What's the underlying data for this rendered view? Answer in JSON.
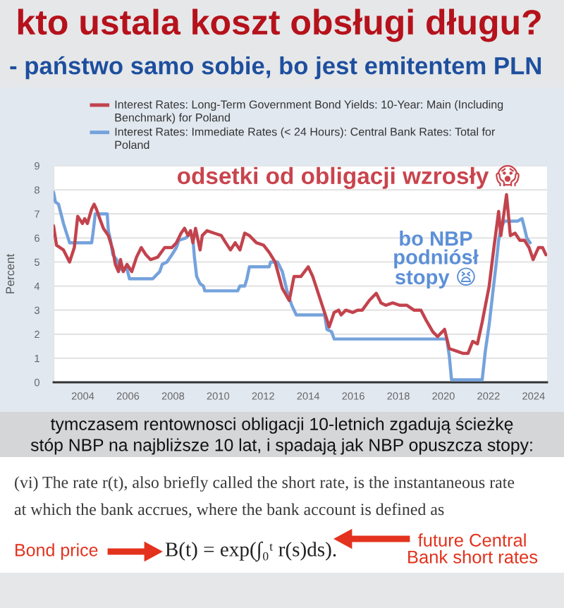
{
  "chart_data": {
    "type": "line",
    "title": "kto ustala koszt obsługi długu?",
    "subtitle": "- państwo samo sobie, bo jest emitentem PLN",
    "ylabel": "Percent",
    "xlim": [
      2002.7,
      2024.6
    ],
    "xticks": [
      2004,
      2006,
      2008,
      2010,
      2012,
      2014,
      2016,
      2018,
      2020,
      2022,
      2024
    ],
    "ylim": [
      0,
      9
    ],
    "yticks": [
      0,
      1,
      2,
      3,
      4,
      5,
      6,
      7,
      8,
      9
    ],
    "grid": "y",
    "legend": "top",
    "line_style": "solid",
    "series": [
      {
        "name": "Interest Rates: Long-Term Government Bond Yields: 10-Year: Main (Including\nBenchmark) for Poland",
        "color": "#c2434d",
        "x": [
          2002.7,
          2002.83,
          2003.14,
          2003.41,
          2003.62,
          2003.77,
          2003.98,
          2004.08,
          2004.2,
          2004.39,
          2004.5,
          2004.6,
          2004.71,
          2004.91,
          2005.13,
          2005.33,
          2005.44,
          2005.58,
          2005.67,
          2005.79,
          2005.96,
          2006.17,
          2006.38,
          2006.59,
          2006.8,
          2007.0,
          2007.32,
          2007.63,
          2007.95,
          2008.15,
          2008.36,
          2008.51,
          2008.67,
          2008.78,
          2008.88,
          2009.0,
          2009.2,
          2009.3,
          2009.51,
          2009.82,
          2010.14,
          2010.34,
          2010.55,
          2010.76,
          2010.97,
          2011.18,
          2011.39,
          2011.7,
          2012.02,
          2012.27,
          2012.53,
          2012.85,
          2013.16,
          2013.37,
          2013.68,
          2014.0,
          2014.2,
          2014.41,
          2014.62,
          2014.83,
          2014.93,
          2015.15,
          2015.35,
          2015.46,
          2015.67,
          2015.98,
          2016.19,
          2016.4,
          2016.71,
          2017.02,
          2017.23,
          2017.44,
          2017.75,
          2018.07,
          2018.38,
          2018.69,
          2019.0,
          2019.22,
          2019.53,
          2019.74,
          2020.05,
          2020.26,
          2020.57,
          2020.88,
          2021.09,
          2021.3,
          2021.51,
          2021.72,
          2022.03,
          2022.24,
          2022.45,
          2022.55,
          2022.8,
          2022.97,
          2023.18,
          2023.39,
          2023.6,
          2023.8,
          2023.98,
          2024.22,
          2024.4,
          2024.55
        ],
        "values": [
          6.5,
          5.7,
          5.5,
          5.0,
          5.6,
          6.9,
          6.6,
          6.8,
          6.6,
          7.2,
          7.4,
          7.2,
          6.9,
          6.4,
          6.1,
          5.5,
          4.9,
          4.6,
          5.1,
          4.6,
          4.9,
          4.6,
          5.2,
          5.6,
          5.3,
          5.1,
          5.2,
          5.6,
          5.6,
          5.8,
          6.2,
          6.4,
          6.1,
          6.3,
          5.8,
          6.4,
          5.5,
          6.1,
          6.3,
          6.2,
          6.1,
          5.8,
          5.5,
          5.8,
          5.5,
          6.2,
          6.1,
          5.8,
          5.7,
          5.4,
          5.0,
          3.9,
          3.4,
          4.4,
          4.4,
          4.8,
          4.4,
          3.8,
          3.2,
          2.6,
          2.3,
          2.9,
          3.0,
          2.8,
          3.0,
          2.9,
          3.0,
          3.0,
          3.4,
          3.7,
          3.3,
          3.2,
          3.3,
          3.2,
          3.2,
          3.0,
          3.0,
          2.6,
          2.1,
          1.9,
          2.2,
          1.4,
          1.3,
          1.2,
          1.2,
          1.7,
          1.6,
          2.5,
          4.0,
          5.6,
          7.1,
          6.1,
          7.8,
          6.1,
          6.2,
          5.9,
          5.9,
          5.6,
          5.1,
          5.6,
          5.6,
          5.3
        ]
      },
      {
        "name": "Interest Rates: Immediate Rates (< 24 Hours): Central Bank Rates: Total for\nPoland",
        "color": "#74a2dc",
        "x": [
          2002.7,
          2002.78,
          2002.92,
          2003.14,
          2003.24,
          2003.41,
          2004.39,
          2004.45,
          2004.55,
          2005.08,
          2005.13,
          2005.23,
          2005.33,
          2005.5,
          2005.65,
          2005.96,
          2006.07,
          2007.1,
          2007.2,
          2007.41,
          2007.52,
          2007.73,
          2007.95,
          2008.15,
          2008.26,
          2008.57,
          2008.78,
          2008.88,
          2008.95,
          2009.05,
          2009.2,
          2009.35,
          2009.41,
          2010.87,
          2010.97,
          2011.18,
          2011.28,
          2011.39,
          2012.27,
          2012.33,
          2012.64,
          2012.85,
          2013.06,
          2013.27,
          2013.47,
          2014.73,
          2014.83,
          2015.04,
          2015.15,
          2020.15,
          2020.26,
          2020.36,
          2021.72,
          2021.86,
          2022.03,
          2022.2,
          2022.35,
          2022.45,
          2022.55,
          2022.7,
          2023.29,
          2023.49,
          2023.6,
          2023.7,
          2023.85
        ],
        "values": [
          7.9,
          7.5,
          7.4,
          6.6,
          6.3,
          5.8,
          5.8,
          6.2,
          7.0,
          7.0,
          6.3,
          5.9,
          5.3,
          5.1,
          4.7,
          4.7,
          4.3,
          4.3,
          4.4,
          4.6,
          4.9,
          5.0,
          5.3,
          5.6,
          5.9,
          6.0,
          6.2,
          6.0,
          5.2,
          4.4,
          4.1,
          4.0,
          3.8,
          3.8,
          4.0,
          4.0,
          4.3,
          4.8,
          4.8,
          5.0,
          5.0,
          4.6,
          3.8,
          3.2,
          2.8,
          2.8,
          2.2,
          2.1,
          1.8,
          1.8,
          1.1,
          0.1,
          0.1,
          1.3,
          2.4,
          3.8,
          5.0,
          5.9,
          6.4,
          6.7,
          6.7,
          6.8,
          6.4,
          6.0,
          5.8
        ]
      }
    ],
    "annotations": [
      "odsetki od obligacji wzrosły 😱",
      "bo NBP\npodniósł\nstopy 😫",
      "tymczasem rentownosci obligacji 10-letnich zgadują ścieżkę\nstóp NBP na najbliższe 10 lat, i spadają jak NBP opuszcza stopy:",
      "(vi) The rate r(t), also briefly called the short rate, is the instantaneous rate\nat which the bank accrues, where the bank account is defined as",
      "B(t) = exp(∫₀ᵗ r(s)ds).",
      "Bond price",
      "future Central\nBank short rates"
    ]
  }
}
